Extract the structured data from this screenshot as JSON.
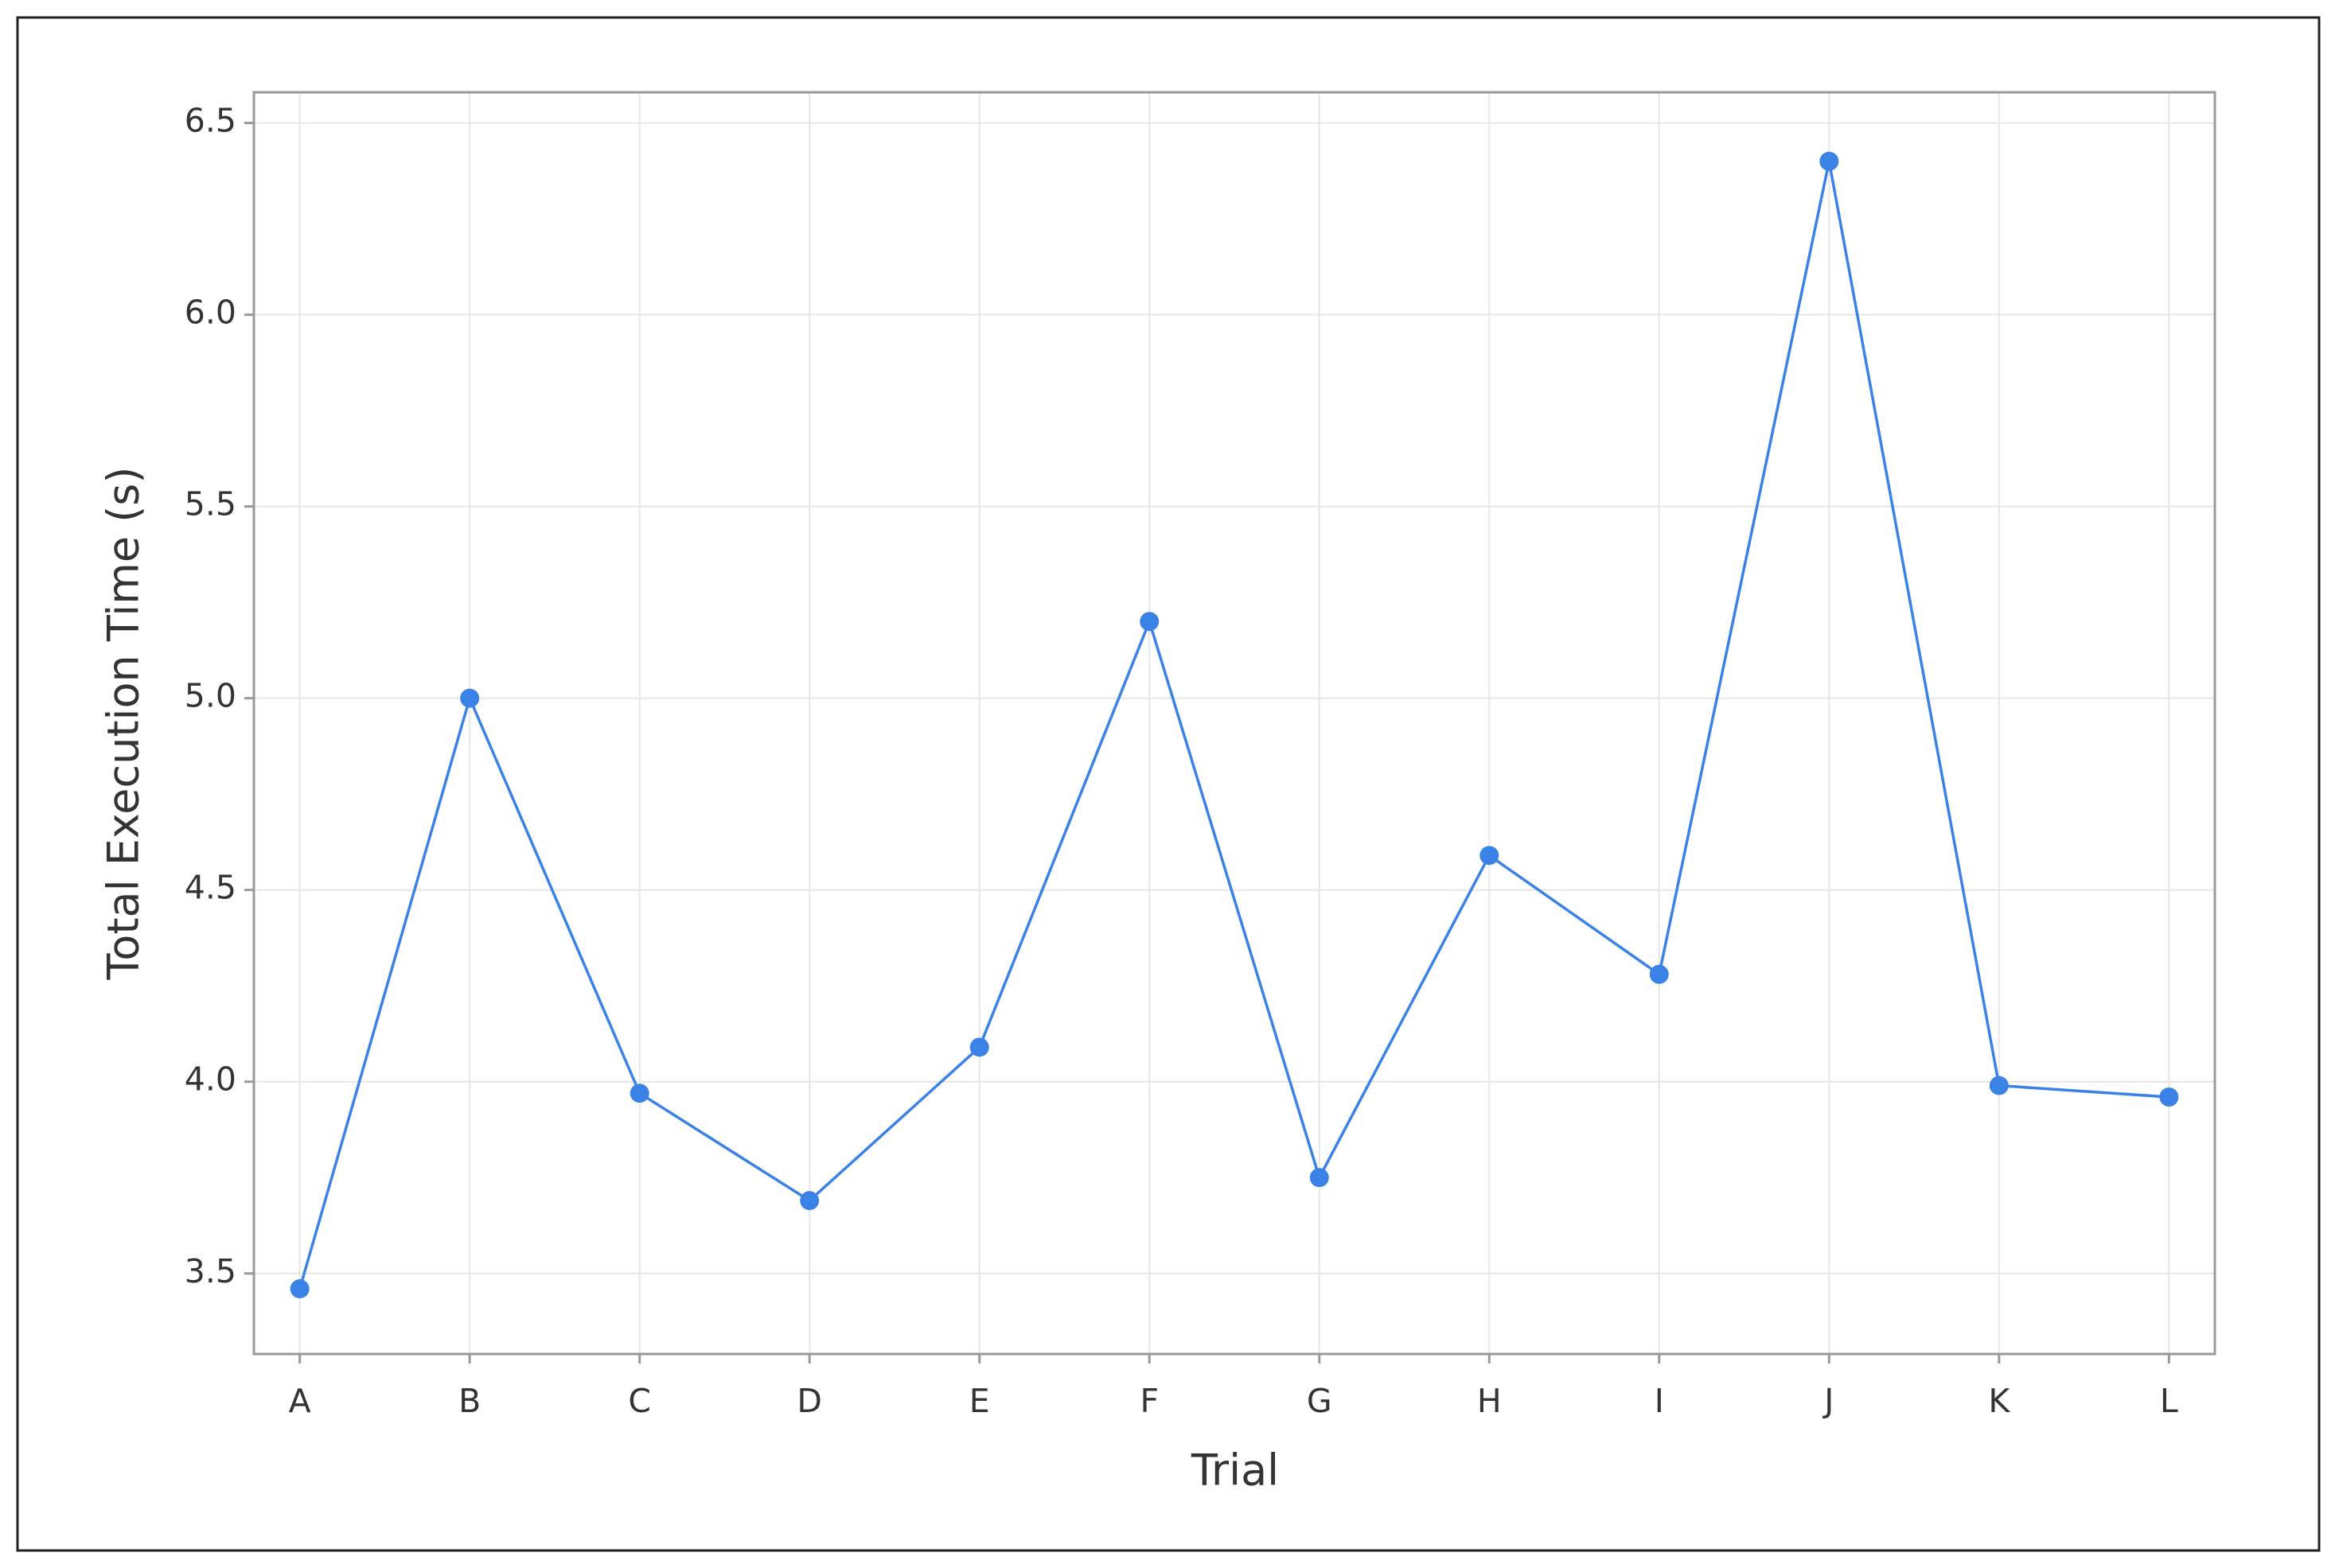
{
  "chart_data": {
    "type": "line",
    "x_label": "Trial",
    "y_label": "Total Execution Time (s)",
    "categories": [
      "A",
      "B",
      "C",
      "D",
      "E",
      "F",
      "G",
      "H",
      "I",
      "J",
      "K",
      "L"
    ],
    "values": [
      3.46,
      5.0,
      3.97,
      3.69,
      4.09,
      5.2,
      3.75,
      4.59,
      4.28,
      6.4,
      3.99,
      3.96
    ],
    "color": "#3b82e6",
    "ylim": [
      3.29,
      6.58
    ],
    "yticks": [
      3.5,
      {
        "value": 4,
        "label": "4.0"
      },
      4.5,
      {
        "value": 5,
        "label": "5.0"
      },
      5.5,
      {
        "value": 6,
        "label": "6.0"
      },
      6.5
    ],
    "grid": true
  }
}
